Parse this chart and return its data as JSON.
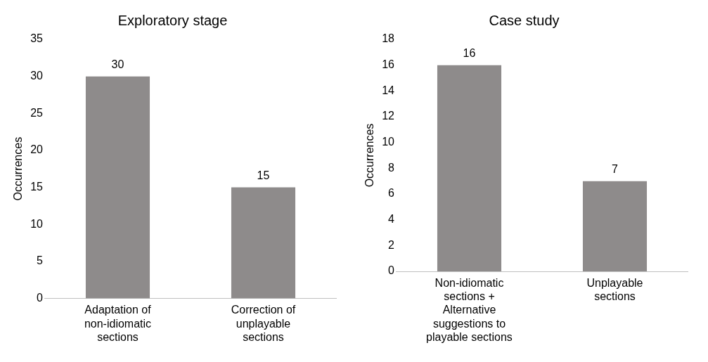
{
  "chart_data": [
    {
      "type": "bar",
      "title": "Exploratory stage",
      "ylabel": "Occurrences",
      "categories": [
        "Adaptation of non-idiomatic sections",
        "Correction of unplayable sections"
      ],
      "values": [
        30,
        15
      ],
      "color": "#8e8b8b",
      "ylim": [
        0,
        35
      ],
      "yticks": [
        0,
        5,
        10,
        15,
        20,
        25,
        30,
        35
      ],
      "grid": false,
      "data_labels": true
    },
    {
      "type": "bar",
      "title": "Case study",
      "ylabel": "Occurrences",
      "categories": [
        "Non-idiomatic sections + Alternative suggestions to playable sections",
        "Unplayable sections"
      ],
      "values": [
        16,
        7
      ],
      "color": "#8e8b8b",
      "ylim": [
        0,
        18
      ],
      "yticks": [
        0,
        2,
        4,
        6,
        8,
        10,
        12,
        14,
        16,
        18
      ],
      "grid": false,
      "data_labels": true
    }
  ]
}
